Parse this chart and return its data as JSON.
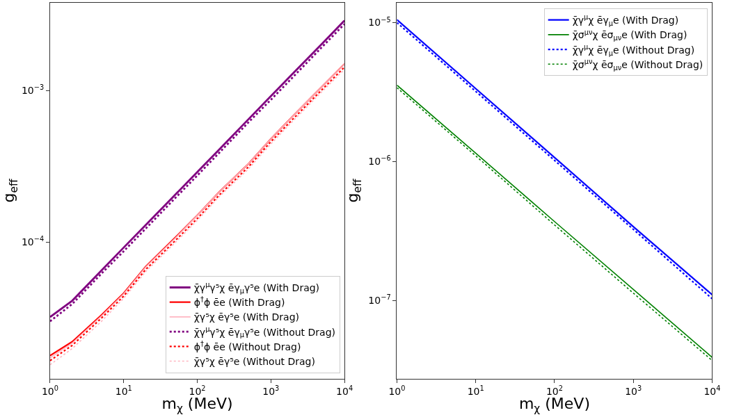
{
  "chart_data": [
    {
      "type": "line",
      "xlabel": "m$_{χ}$ (MeV)",
      "ylabel": "g$_{eff}$",
      "log": "xy",
      "legend": "bottom right",
      "marker": "none",
      "xlim": [
        1,
        10000
      ],
      "xticks": [
        {
          "value": 1,
          "label": "10$^{0}$"
        },
        {
          "value": 10,
          "label": "10$^{1}$"
        },
        {
          "value": 100,
          "label": "10$^{2}$"
        },
        {
          "value": 1000,
          "label": "10$^{3}$"
        },
        {
          "value": 10000,
          "label": "10$^{4}$"
        }
      ],
      "ylim": [
        1.25e-05,
        0.0038
      ],
      "yticks": [
        {
          "value": 0.0001,
          "label": "10$^{−4}$"
        },
        {
          "value": 0.001,
          "label": "10$^{−3}$"
        }
      ],
      "x": [
        1,
        2,
        5,
        10,
        20,
        50,
        100,
        200,
        500,
        1000,
        2000,
        5000,
        10000
      ],
      "series": [
        {
          "name": "χ̄γ$^{μ}$γ⁵χ ēγ$_{μ}$γ⁵e (With Drag)",
          "color": "#800080",
          "line_style": "solid",
          "values": [
            3.2e-05,
            4.1e-05,
            6.5e-05,
            9.2e-05,
            0.00013,
            0.000205,
            0.00029,
            0.00041,
            0.00065,
            0.00092,
            0.0013,
            0.00205,
            0.0029
          ]
        },
        {
          "name": "ϕ$^{†}$ϕ ēe (With Drag)",
          "color": "#ff0000",
          "line_style": "solid",
          "values": [
            1.78e-05,
            2.2e-05,
            3.3e-05,
            4.6e-05,
            6.9e-05,
            0.000107,
            0.00015,
            0.000215,
            0.00033,
            0.00048,
            0.00068,
            0.00107,
            0.0015
          ]
        },
        {
          "name": "χ̄γ⁵χ ēγ⁵e (With Drag)",
          "color": "#ffb6c1",
          "line_style": "solid",
          "values": [
            1.72e-05,
            2.15e-05,
            3.25e-05,
            4.55e-05,
            6.85e-05,
            0.000106,
            0.00015,
            0.000215,
            0.00033,
            0.00048,
            0.00068,
            0.00107,
            0.0015
          ]
        },
        {
          "name": "χ̄γ$^{μ}$γ⁵χ ēγ$_{μ}$γ⁵e (Without Drag)",
          "color": "#800080",
          "line_style": "dotted",
          "values": [
            3e-05,
            3.9e-05,
            6.2e-05,
            8.7e-05,
            0.000123,
            0.000195,
            0.000275,
            0.00039,
            0.00062,
            0.00087,
            0.00123,
            0.00195,
            0.00275
          ]
        },
        {
          "name": "ϕ$^{†}$ϕ ēe (Without Drag)",
          "color": "#ff0000",
          "line_style": "dotted",
          "values": [
            1.65e-05,
            2.08e-05,
            3.15e-05,
            4.4e-05,
            6.6e-05,
            0.000102,
            0.000143,
            0.000205,
            0.000315,
            0.00046,
            0.00065,
            0.00102,
            0.00143
          ]
        },
        {
          "name": "χ̄γ⁵χ ēγ⁵e (Without Drag)",
          "color": "#ffb6c1",
          "line_style": "dotted",
          "values": [
            1.55e-05,
            1.98e-05,
            3e-05,
            4.25e-05,
            6.4e-05,
            9.9e-05,
            0.000139,
            0.0002,
            0.000305,
            0.000445,
            0.00063,
            0.00099,
            0.00138
          ]
        }
      ]
    },
    {
      "type": "line",
      "xlabel": "m$_{χ}$ (MeV)",
      "ylabel": "g$_{eff}$",
      "log": "xy",
      "legend": "top right",
      "marker": "none",
      "xlim": [
        1,
        10000
      ],
      "xticks": [
        {
          "value": 1,
          "label": "10$^{0}$"
        },
        {
          "value": 10,
          "label": "10$^{1}$"
        },
        {
          "value": 100,
          "label": "10$^{2}$"
        },
        {
          "value": 1000,
          "label": "10$^{3}$"
        },
        {
          "value": 10000,
          "label": "10$^{4}$"
        }
      ],
      "ylim": [
        2.73e-08,
        1.39e-05
      ],
      "yticks": [
        {
          "value": 1e-07,
          "label": "10$^{−7}$"
        },
        {
          "value": 1e-06,
          "label": "10$^{−6}$"
        },
        {
          "value": 1e-05,
          "label": "10$^{−5}$"
        }
      ],
      "x": [
        1,
        10,
        100,
        1000,
        10000
      ],
      "series": [
        {
          "name": "χ̄γ$^{μ}$χ ēγ$_{μ}$e (With Drag)",
          "color": "#0000ff",
          "line_style": "solid",
          "values": [
            1.05e-05,
            3.35e-06,
            1.07e-06,
            3.4e-07,
            1.1e-07
          ]
        },
        {
          "name": "χ̄σ$^{μν}$χ ēσ$_{μν}$e (With Drag)",
          "color": "#008000",
          "line_style": "solid",
          "values": [
            3.55e-06,
            1.15e-06,
            3.7e-07,
            1.2e-07,
            3.9e-08
          ]
        },
        {
          "name": "χ̄γ$^{μ}$χ ēγ$_{μ}$e (Without Drag)",
          "color": "#0000ff",
          "line_style": "dotted",
          "values": [
            1e-05,
            3.2e-06,
            1.02e-06,
            3.25e-07,
            1.03e-07
          ]
        },
        {
          "name": "χ̄σ$^{μν}$χ ēσ$_{μν}$e (Without Drag)",
          "color": "#008000",
          "line_style": "dotted",
          "values": [
            3.4e-06,
            1.1e-06,
            3.5e-07,
            1.13e-07,
            3.7e-08
          ]
        }
      ]
    }
  ]
}
